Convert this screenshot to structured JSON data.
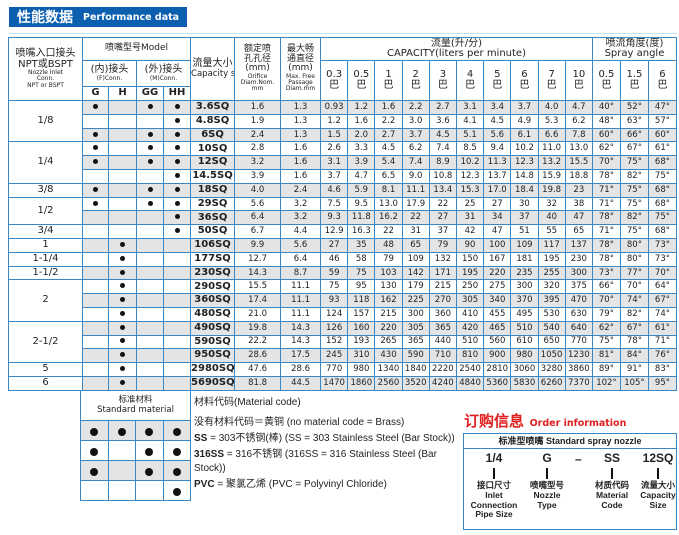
{
  "header": {
    "title_cn": "性能数据",
    "title_en": "Performance data"
  },
  "table": {
    "inlet_header": [
      "喷嘴入口接头",
      "NPT或BSPT",
      "Nozzle Inlet",
      "Conn.",
      "NPT or BSPT"
    ],
    "model_header": "喷嘴型号Model",
    "female_header": {
      "cn": "(内)接头",
      "en": "(F)Conn."
    },
    "male_header": {
      "cn": "(外)接头",
      "en": "(M)Conn."
    },
    "model_types": [
      "G",
      "H",
      "GG",
      "HH"
    ],
    "capacity_size_header": [
      "流量大小",
      "Capacity size"
    ],
    "orifice_header": [
      "额定喷",
      "孔孔径",
      "(mm)",
      "Orifice",
      "Diam.Nom.",
      "mm"
    ],
    "passage_header": [
      "最大畅",
      "通直径",
      "(mm)",
      "Max. Free",
      "Passage",
      "Diam.mm"
    ],
    "capacity_header": [
      "流量(升/分)",
      "CAPACITY(liters per minute)"
    ],
    "spray_header": [
      "喷流角度(度)",
      "Spray angle"
    ],
    "pressure_unit": "巴",
    "capacity_pressures": [
      "0.3",
      "0.5",
      "1",
      "2",
      "3",
      "4",
      "5",
      "6",
      "7",
      "10"
    ],
    "angle_pressures": [
      "0.5",
      "1.5",
      "6"
    ],
    "groups": [
      {
        "inlet": "1/8",
        "rows": [
          {
            "types": [
              1,
              0,
              1,
              1
            ],
            "size": "3.6SQ",
            "orifice": "1.6",
            "passage": "1.3",
            "capacity": [
              "0.93",
              "1.2",
              "1.6",
              "2.2",
              "2.7",
              "3.1",
              "3.4",
              "3.7",
              "4.0",
              "4.7"
            ],
            "angles": [
              "40°",
              "52°",
              "47°"
            ]
          },
          {
            "types": [
              0,
              0,
              0,
              1
            ],
            "size": "4.8SQ",
            "orifice": "1.9",
            "passage": "1.3",
            "capacity": [
              "1.2",
              "1.6",
              "2.2",
              "3.0",
              "3.6",
              "4.1",
              "4.5",
              "4.9",
              "5.3",
              "6.2"
            ],
            "angles": [
              "48°",
              "63°",
              "57°"
            ]
          },
          {
            "types": [
              1,
              0,
              1,
              1
            ],
            "size": "6SQ",
            "orifice": "2.4",
            "passage": "1.3",
            "capacity": [
              "1.5",
              "2.0",
              "2.7",
              "3.7",
              "4.5",
              "5.1",
              "5.6",
              "6.1",
              "6.6",
              "7.8"
            ],
            "angles": [
              "60°",
              "66°",
              "60°"
            ]
          }
        ]
      },
      {
        "inlet": "1/4",
        "rows": [
          {
            "types": [
              1,
              0,
              1,
              1
            ],
            "size": "10SQ",
            "orifice": "2.8",
            "passage": "1.6",
            "capacity": [
              "2.6",
              "3.3",
              "4.5",
              "6.2",
              "7.4",
              "8.5",
              "9.4",
              "10.2",
              "11.0",
              "13.0"
            ],
            "angles": [
              "62°",
              "67°",
              "61°"
            ]
          },
          {
            "types": [
              1,
              0,
              1,
              1
            ],
            "size": "12SQ",
            "orifice": "3.2",
            "passage": "1.6",
            "capacity": [
              "3.1",
              "3.9",
              "5.4",
              "7.4",
              "8.9",
              "10.2",
              "11.3",
              "12.3",
              "13.2",
              "15.5"
            ],
            "angles": [
              "70°",
              "75°",
              "68°"
            ]
          },
          {
            "types": [
              0,
              0,
              0,
              1
            ],
            "size": "14.5SQ",
            "orifice": "3.9",
            "passage": "1.6",
            "capacity": [
              "3.7",
              "4.7",
              "6.5",
              "9.0",
              "10.8",
              "12.3",
              "13.7",
              "14.8",
              "15.9",
              "18.8"
            ],
            "angles": [
              "78°",
              "82°",
              "75°"
            ]
          }
        ]
      },
      {
        "inlet": "3/8",
        "rows": [
          {
            "types": [
              1,
              0,
              1,
              1
            ],
            "size": "18SQ",
            "orifice": "4.0",
            "passage": "2.4",
            "capacity": [
              "4.6",
              "5.9",
              "8.1",
              "11.1",
              "13.4",
              "15.3",
              "17.0",
              "18.4",
              "19.8",
              "23"
            ],
            "angles": [
              "71°",
              "75°",
              "68°"
            ]
          }
        ]
      },
      {
        "inlet": "1/2",
        "rows": [
          {
            "types": [
              1,
              0,
              1,
              1
            ],
            "size": "29SQ",
            "orifice": "5.6",
            "passage": "3.2",
            "capacity": [
              "7.5",
              "9.5",
              "13.0",
              "17.9",
              "22",
              "25",
              "27",
              "30",
              "32",
              "38"
            ],
            "angles": [
              "71°",
              "75°",
              "68°"
            ]
          },
          {
            "types": [
              0,
              0,
              0,
              1
            ],
            "size": "36SQ",
            "orifice": "6.4",
            "passage": "3.2",
            "capacity": [
              "9.3",
              "11.8",
              "16.2",
              "22",
              "27",
              "31",
              "34",
              "37",
              "40",
              "47"
            ],
            "angles": [
              "78°",
              "82°",
              "75°"
            ]
          }
        ]
      },
      {
        "inlet": "3/4",
        "rows": [
          {
            "types": [
              0,
              0,
              0,
              1
            ],
            "size": "50SQ",
            "orifice": "6.7",
            "passage": "4.4",
            "capacity": [
              "12.9",
              "16.3",
              "22",
              "31",
              "37",
              "42",
              "47",
              "51",
              "55",
              "65"
            ],
            "angles": [
              "71°",
              "75°",
              "68°"
            ]
          }
        ]
      },
      {
        "inlet": "1",
        "rows": [
          {
            "types": [
              0,
              1,
              0,
              0
            ],
            "size": "106SQ",
            "orifice": "9.9",
            "passage": "5.6",
            "capacity": [
              "27",
              "35",
              "48",
              "65",
              "79",
              "90",
              "100",
              "109",
              "117",
              "137"
            ],
            "angles": [
              "78°",
              "80°",
              "73°"
            ]
          }
        ]
      },
      {
        "inlet": "1-1/4",
        "rows": [
          {
            "types": [
              0,
              1,
              0,
              0
            ],
            "size": "177SQ",
            "orifice": "12.7",
            "passage": "6.4",
            "capacity": [
              "46",
              "58",
              "79",
              "109",
              "132",
              "150",
              "167",
              "181",
              "195",
              "230"
            ],
            "angles": [
              "78°",
              "80°",
              "73°"
            ]
          }
        ]
      },
      {
        "inlet": "1-1/2",
        "rows": [
          {
            "types": [
              0,
              1,
              0,
              0
            ],
            "size": "230SQ",
            "orifice": "14.3",
            "passage": "8.7",
            "capacity": [
              "59",
              "75",
              "103",
              "142",
              "171",
              "195",
              "220",
              "235",
              "255",
              "300"
            ],
            "angles": [
              "73°",
              "77°",
              "70°"
            ]
          }
        ]
      },
      {
        "inlet": "2",
        "rows": [
          {
            "types": [
              0,
              1,
              0,
              0
            ],
            "size": "290SQ",
            "orifice": "15.5",
            "passage": "11.1",
            "capacity": [
              "75",
              "95",
              "130",
              "179",
              "215",
              "250",
              "275",
              "300",
              "320",
              "375"
            ],
            "angles": [
              "66°",
              "70°",
              "64°"
            ]
          },
          {
            "types": [
              0,
              1,
              0,
              0
            ],
            "size": "360SQ",
            "orifice": "17.4",
            "passage": "11.1",
            "capacity": [
              "93",
              "118",
              "162",
              "225",
              "270",
              "305",
              "340",
              "370",
              "395",
              "470"
            ],
            "angles": [
              "70°",
              "74°",
              "67°"
            ]
          },
          {
            "types": [
              0,
              1,
              0,
              0
            ],
            "size": "480SQ",
            "orifice": "21.0",
            "passage": "11.1",
            "capacity": [
              "124",
              "157",
              "215",
              "300",
              "360",
              "410",
              "455",
              "495",
              "530",
              "630"
            ],
            "angles": [
              "79°",
              "82°",
              "74°"
            ]
          }
        ]
      },
      {
        "inlet": "2-1/2",
        "rows": [
          {
            "types": [
              0,
              1,
              0,
              0
            ],
            "size": "490SQ",
            "orifice": "19.8",
            "passage": "14.3",
            "capacity": [
              "126",
              "160",
              "220",
              "305",
              "365",
              "420",
              "465",
              "510",
              "540",
              "640"
            ],
            "angles": [
              "62°",
              "67°",
              "61°"
            ]
          },
          {
            "types": [
              0,
              1,
              0,
              0
            ],
            "size": "590SQ",
            "orifice": "22.2",
            "passage": "14.3",
            "capacity": [
              "152",
              "193",
              "265",
              "365",
              "440",
              "510",
              "560",
              "610",
              "650",
              "770"
            ],
            "angles": [
              "75°",
              "78°",
              "71°"
            ]
          },
          {
            "types": [
              0,
              1,
              0,
              0
            ],
            "size": "950SQ",
            "orifice": "28.6",
            "passage": "17.5",
            "capacity": [
              "245",
              "310",
              "430",
              "590",
              "710",
              "810",
              "900",
              "980",
              "1050",
              "1230"
            ],
            "angles": [
              "81°",
              "84°",
              "76°"
            ]
          }
        ]
      },
      {
        "inlet": "5",
        "rows": [
          {
            "types": [
              0,
              1,
              0,
              0
            ],
            "size": "2980SQ",
            "orifice": "47.6",
            "passage": "28.6",
            "capacity": [
              "770",
              "980",
              "1340",
              "1840",
              "2220",
              "2540",
              "2810",
              "3060",
              "3280",
              "3860"
            ],
            "angles": [
              "89°",
              "91°",
              "83°"
            ]
          }
        ]
      },
      {
        "inlet": "6",
        "rows": [
          {
            "types": [
              0,
              1,
              0,
              0
            ],
            "size": "5690SQ",
            "orifice": "81.8",
            "passage": "44.5",
            "capacity": [
              "1470",
              "1860",
              "2560",
              "3520",
              "4240",
              "4840",
              "5360",
              "5830",
              "6260",
              "7370"
            ],
            "angles": [
              "102°",
              "105°",
              "95°"
            ]
          }
        ]
      }
    ]
  },
  "materials": {
    "header_cn": "标准材料",
    "header_en": "Standard material",
    "matrix": [
      [
        1,
        1,
        1,
        1
      ],
      [
        1,
        0,
        1,
        1
      ],
      [
        1,
        0,
        1,
        1
      ],
      [
        0,
        0,
        0,
        1
      ]
    ],
    "code_title": "材料代码(Material code)",
    "lines": [
      {
        "code": "",
        "text": "没有材料代码＝黄铜  (no material code = Brass)"
      },
      {
        "code": "SS",
        "text": " = 303不锈钢(棒)  (SS = 303 Stainless Steel (Bar Stock))"
      },
      {
        "code": "316SS",
        "text": " = 316不锈钢 (316SS = 316 Stainless Steel (Bar Stock))"
      },
      {
        "code": "PVC",
        "text": " = 聚氯乙烯 (PVC = Polyvinyl Chloride)"
      }
    ]
  },
  "order": {
    "title_cn": "订购信息",
    "title_en": "Order information",
    "box_title": "标准型喷嘴 Standard spray nozzle",
    "dash": "–",
    "parts": [
      {
        "code": "1/4",
        "label": [
          "接口尺寸",
          "Inlet",
          "Connection",
          "Pipe Size"
        ]
      },
      {
        "code": "G",
        "label": [
          "喷嘴型号",
          "Nozzle",
          "Type"
        ]
      },
      {
        "code": "SS",
        "label": [
          "材质代码",
          "Material",
          "Code"
        ]
      },
      {
        "code": "12SQ",
        "label": [
          "流量大小",
          "Capacity",
          "Size"
        ]
      }
    ]
  },
  "colors": {
    "grid": "#3a87c8",
    "title_bg": "#0b5fae",
    "shade": "#e4e4e4",
    "order_red": "#e02020"
  }
}
